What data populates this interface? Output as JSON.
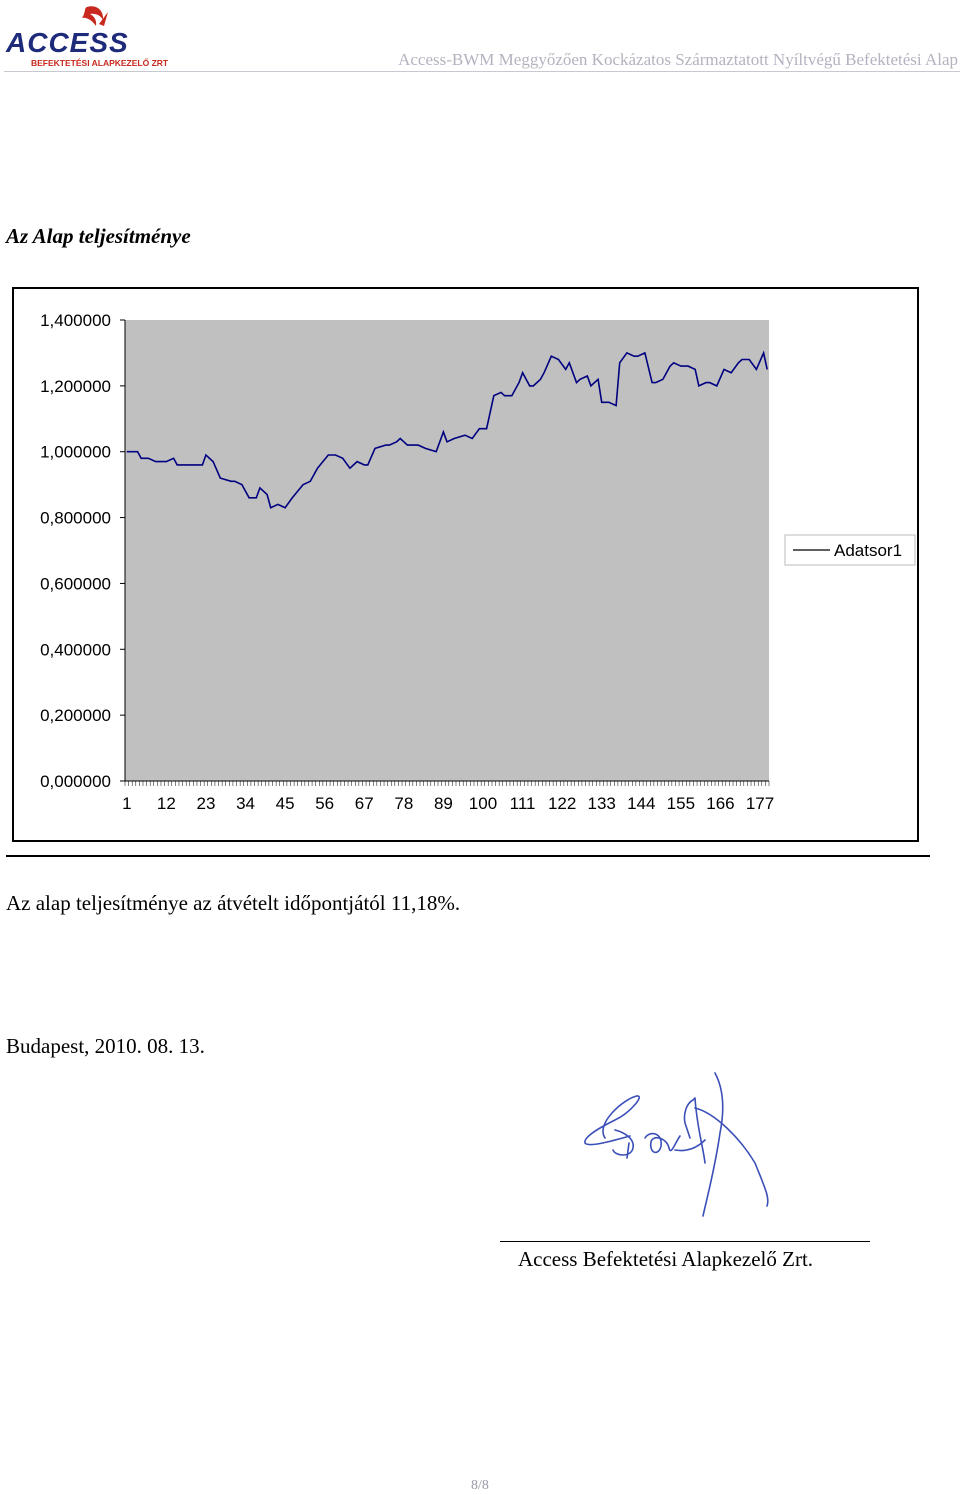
{
  "header": {
    "logo_name": "ACCESS",
    "logo_tagline": "BEFEKTETÉSI ALAPKEZELŐ ZRT",
    "title": "Access-BWM Meggyőzően Kockázatos Származtatott Nyíltvégű Befektetési Alap",
    "colors": {
      "logo_blue": "#1e2a7a",
      "logo_red": "#c8281e",
      "title_gray": "#b3b3c0"
    }
  },
  "section_title": "Az Alap teljesítménye",
  "chart_data": {
    "type": "line",
    "title": "",
    "xlabel": "",
    "ylabel": "",
    "ylim": [
      0,
      1.4
    ],
    "y_ticks": [
      "1,400000",
      "1,200000",
      "1,000000",
      "0,800000",
      "0,600000",
      "0,400000",
      "0,200000",
      "0,000000"
    ],
    "x_tick_labels": [
      "1",
      "12",
      "23",
      "34",
      "45",
      "56",
      "67",
      "78",
      "89",
      "100",
      "111",
      "122",
      "133",
      "144",
      "155",
      "166",
      "177"
    ],
    "grid": false,
    "legend": "right",
    "plot_background": "#c0c0c0",
    "series": [
      {
        "name": "Adatsor1",
        "color": "#000080",
        "x": [
          1,
          4,
          5,
          7,
          9,
          12,
          14,
          15,
          17,
          18,
          22,
          23,
          25,
          27,
          30,
          31,
          33,
          35,
          37,
          38,
          40,
          41,
          43,
          45,
          47,
          50,
          52,
          54,
          57,
          59,
          61,
          63,
          65,
          67,
          68,
          70,
          73,
          74,
          76,
          77,
          79,
          80,
          82,
          84,
          87,
          89,
          90,
          92,
          95,
          97,
          99,
          101,
          103,
          105,
          106,
          108,
          110,
          111,
          113,
          114,
          116,
          117,
          119,
          121,
          123,
          124,
          126,
          127,
          129,
          130,
          132,
          133,
          135,
          137,
          138,
          140,
          142,
          143,
          145,
          147,
          148,
          150,
          152,
          153,
          155,
          157,
          159,
          160,
          162,
          163,
          165,
          167,
          169,
          171,
          172,
          174,
          176,
          178,
          179
        ],
        "values": [
          1.0,
          1.0,
          0.98,
          0.98,
          0.97,
          0.97,
          0.98,
          0.96,
          0.96,
          0.96,
          0.96,
          0.99,
          0.97,
          0.92,
          0.91,
          0.91,
          0.9,
          0.86,
          0.86,
          0.89,
          0.87,
          0.83,
          0.84,
          0.83,
          0.86,
          0.9,
          0.91,
          0.95,
          0.99,
          0.99,
          0.98,
          0.95,
          0.97,
          0.96,
          0.96,
          1.01,
          1.02,
          1.02,
          1.03,
          1.04,
          1.02,
          1.02,
          1.02,
          1.01,
          1.0,
          1.06,
          1.03,
          1.04,
          1.05,
          1.04,
          1.07,
          1.07,
          1.17,
          1.18,
          1.17,
          1.17,
          1.21,
          1.24,
          1.2,
          1.2,
          1.22,
          1.24,
          1.29,
          1.28,
          1.25,
          1.27,
          1.21,
          1.22,
          1.23,
          1.2,
          1.22,
          1.15,
          1.15,
          1.14,
          1.27,
          1.3,
          1.29,
          1.29,
          1.3,
          1.21,
          1.21,
          1.22,
          1.26,
          1.27,
          1.26,
          1.26,
          1.25,
          1.2,
          1.21,
          1.21,
          1.2,
          1.25,
          1.24,
          1.27,
          1.28,
          1.28,
          1.25,
          1.3,
          1.25
        ]
      }
    ]
  },
  "performance_text": "Az alap teljesítménye az átvételt időpontjától 11,18%.",
  "date_text": "Budapest, 2010. 08. 13.",
  "company_text": "Access Befektetési Alapkezelő Zrt.",
  "page_number": "8/8"
}
